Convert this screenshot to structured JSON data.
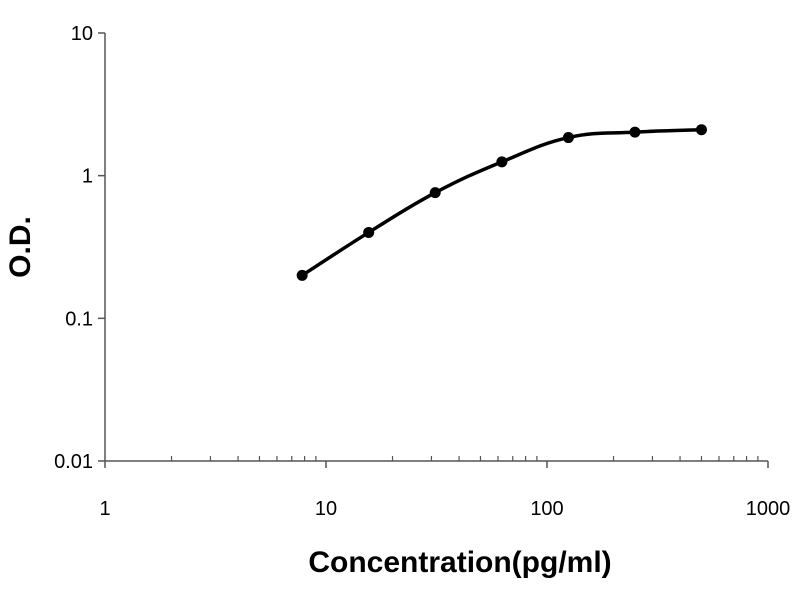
{
  "chart_data": {
    "type": "line",
    "title": "",
    "xlabel": "Concentration(pg/ml)",
    "ylabel": "O.D.",
    "xscale": "log",
    "yscale": "log",
    "xlim": [
      1,
      1000
    ],
    "ylim": [
      0.01,
      10
    ],
    "x_ticks": [
      {
        "value": 1,
        "label": "1"
      },
      {
        "value": 10,
        "label": "10"
      },
      {
        "value": 100,
        "label": "100"
      },
      {
        "value": 1000,
        "label": "1000"
      }
    ],
    "y_ticks": [
      {
        "value": 0.01,
        "label": "0.01"
      },
      {
        "value": 0.1,
        "label": "0.1"
      },
      {
        "value": 1,
        "label": "1"
      },
      {
        "value": 10,
        "label": "10"
      }
    ],
    "grid": false,
    "legend": false,
    "smooth": true,
    "line_color": "#000000",
    "marker_color": "#000000",
    "series": [
      {
        "x": [
          7.8,
          15.6,
          31.2,
          62.5,
          125,
          250,
          500
        ],
        "y": [
          0.2,
          0.4,
          0.76,
          1.25,
          1.85,
          2.02,
          2.1
        ]
      }
    ]
  }
}
